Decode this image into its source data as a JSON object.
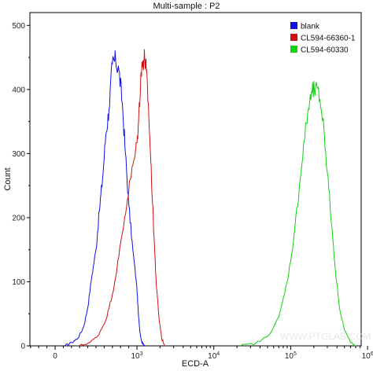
{
  "chart_data": {
    "type": "line",
    "title": "Multi-sample : P2",
    "xlabel": "ECD-A",
    "ylabel": "Count",
    "x_scale": "biexponential",
    "xlim": [
      -400,
      1000000
    ],
    "ylim": [
      0,
      520
    ],
    "x_ticks": [
      {
        "value": 0,
        "label": "0"
      },
      {
        "value": 1000,
        "label": "10",
        "exp": "3"
      },
      {
        "value": 10000,
        "label": "10",
        "exp": "4"
      },
      {
        "value": 100000,
        "label": "10",
        "exp": "5"
      },
      {
        "value": 1000000,
        "label": "10",
        "exp": "6"
      }
    ],
    "y_ticks": [
      0,
      100,
      200,
      300,
      400,
      500
    ],
    "grid": false,
    "legend_position": "top-right",
    "series": [
      {
        "name": "blank",
        "color": "#1010e0",
        "x": [
          120,
          200,
          280,
          350,
          400,
          450,
          500,
          540,
          580,
          620,
          660,
          700,
          740,
          780,
          820,
          860,
          900,
          950,
          1000,
          1050,
          1100,
          1150,
          1200,
          1300
        ],
        "y": [
          0,
          5,
          12,
          30,
          60,
          110,
          150,
          210,
          260,
          330,
          370,
          440,
          445,
          430,
          380,
          300,
          220,
          150,
          90,
          45,
          20,
          8,
          3,
          0
        ]
      },
      {
        "name": "CL594-66360-1",
        "color": "#d01010",
        "x": [
          300,
          420,
          520,
          620,
          700,
          780,
          850,
          920,
          980,
          1050,
          1120,
          1200,
          1260,
          1320,
          1400,
          1500,
          1600,
          1700,
          1800,
          1950,
          2100,
          2300
        ],
        "y": [
          0,
          5,
          15,
          40,
          80,
          140,
          200,
          260,
          300,
          350,
          420,
          445,
          450,
          430,
          380,
          300,
          220,
          150,
          90,
          40,
          12,
          0
        ]
      },
      {
        "name": "CL594-60330",
        "color": "#10d010",
        "x": [
          22000,
          35000,
          50000,
          70000,
          90000,
          110000,
          130000,
          150000,
          170000,
          190000,
          210000,
          240000,
          270000,
          300000,
          340000,
          380000,
          430000,
          500000,
          600000,
          700000
        ],
        "y": [
          0,
          4,
          15,
          45,
          100,
          170,
          250,
          320,
          370,
          395,
          400,
          385,
          340,
          270,
          190,
          120,
          60,
          25,
          5,
          0
        ]
      }
    ]
  },
  "watermark": "WWW.PTGLAB.COM"
}
